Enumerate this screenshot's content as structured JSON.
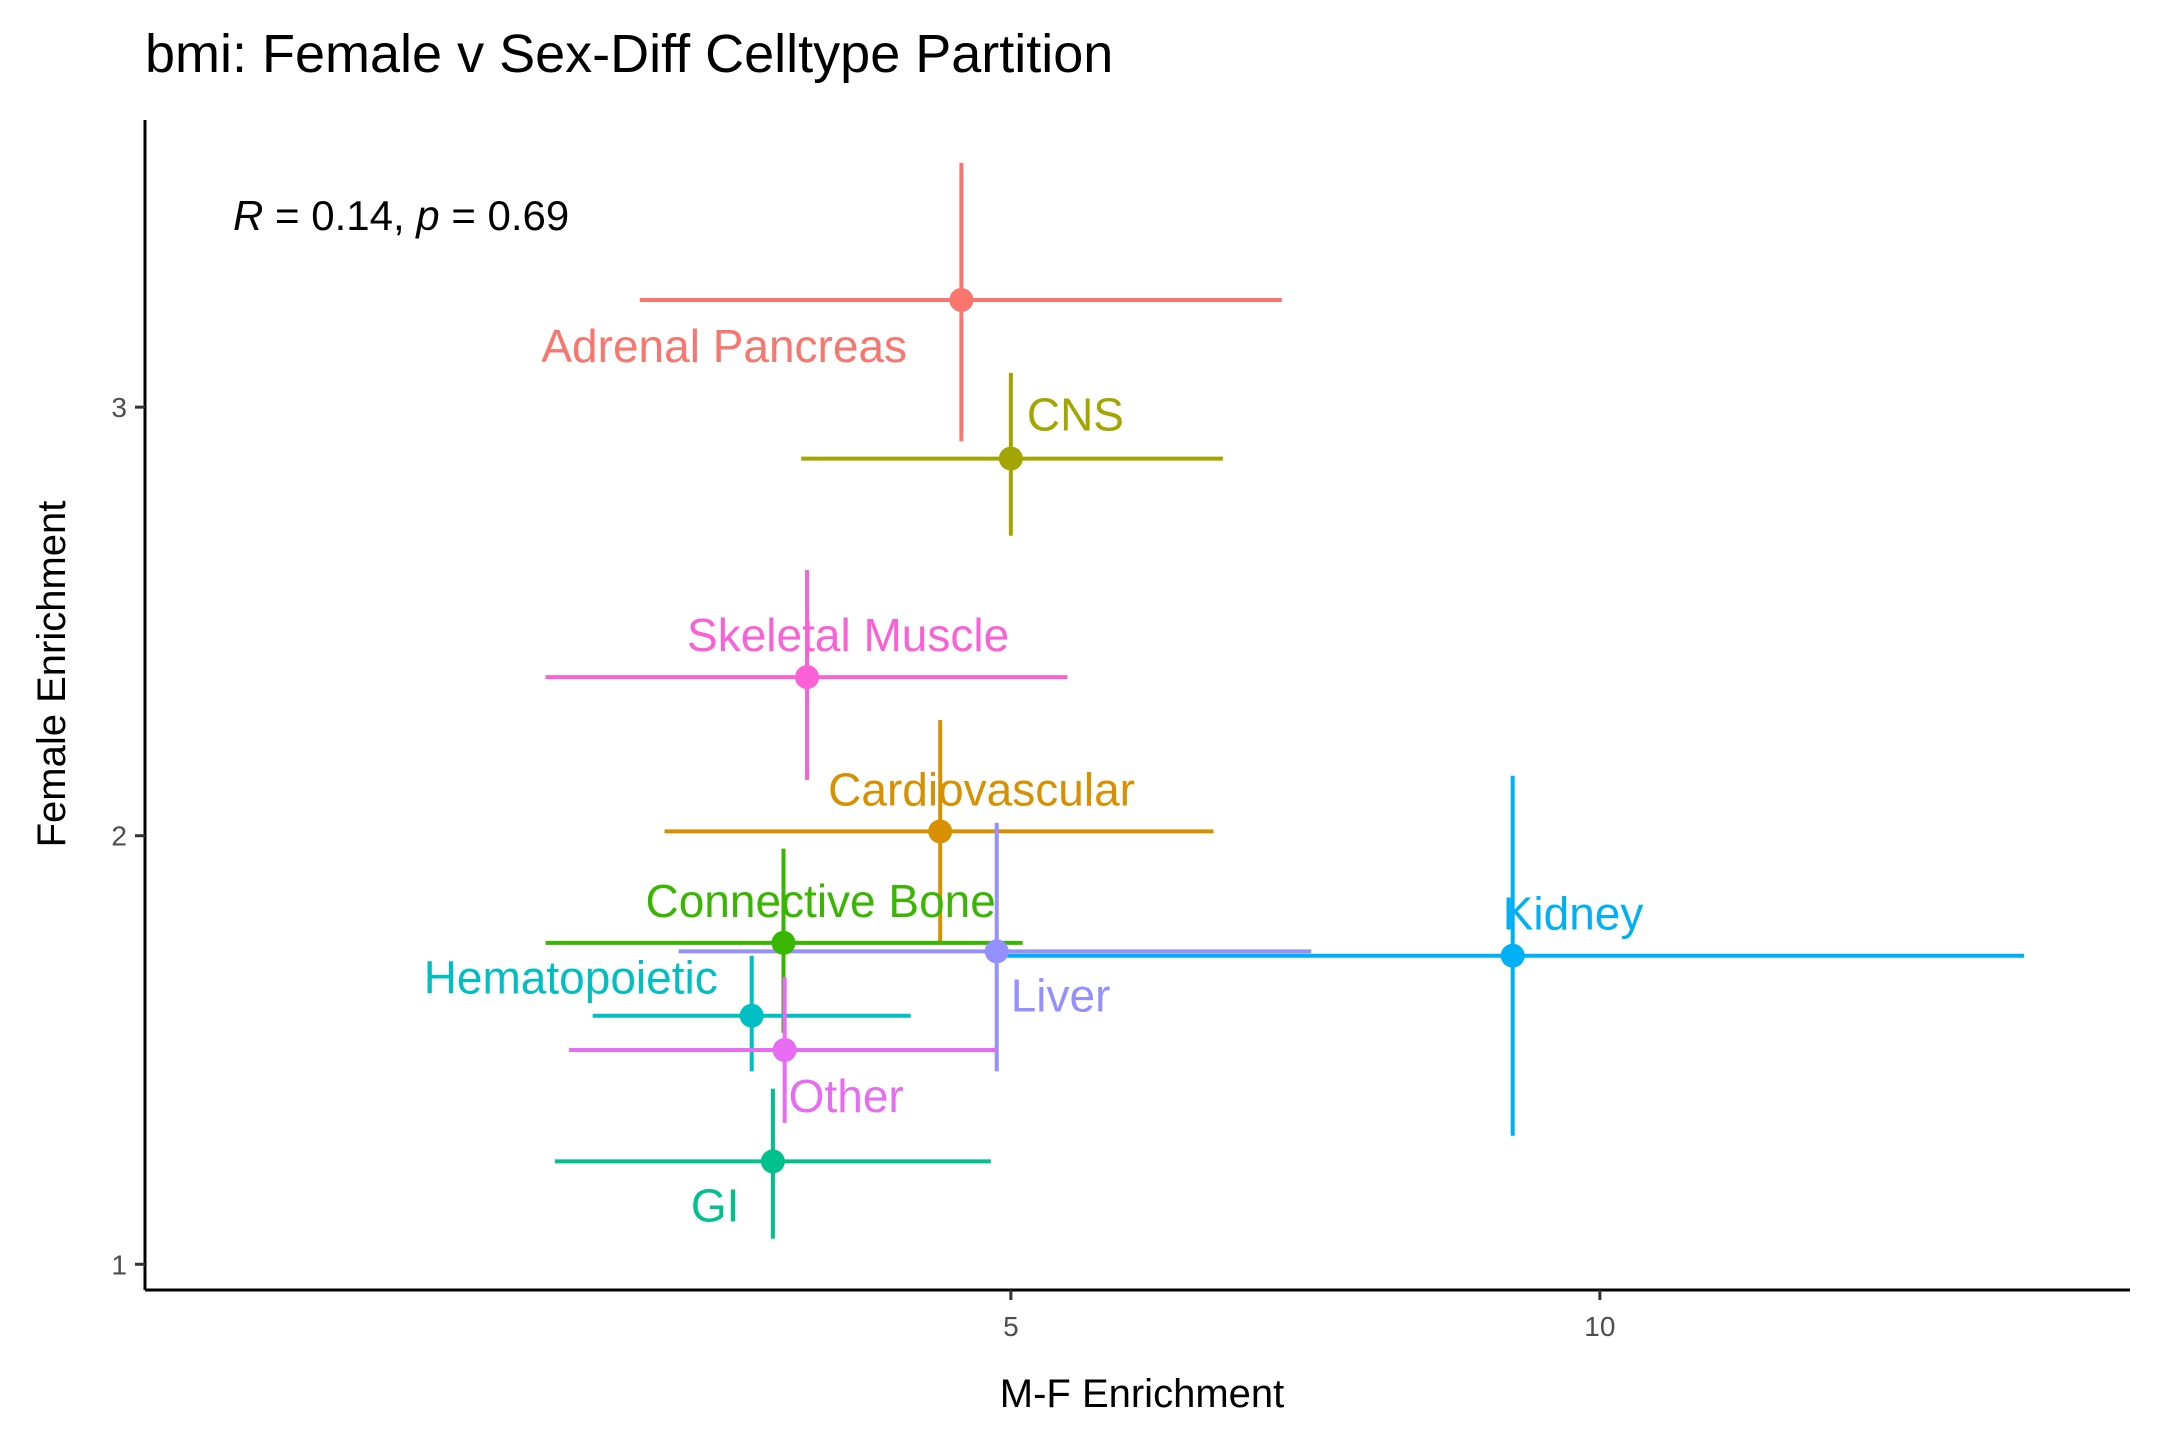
{
  "chart_data": {
    "type": "scatter",
    "title": "bmi: Female v Sex-Diff Celltype Partition",
    "xlabel": "M-F Enrichment",
    "ylabel": "Female Enrichment",
    "xlim": [
      -2.35,
      14.5
    ],
    "ylim": [
      0.94,
      3.67
    ],
    "x_ticks": [
      5,
      10
    ],
    "y_ticks": [
      1,
      2,
      3
    ],
    "grid": false,
    "legend": "none",
    "annotation": {
      "r_symbol": "R",
      "r_text": " = 0.14, ",
      "p_symbol": "p",
      "p_text": " = 0.69"
    },
    "series": [
      {
        "label": "Adrenal Pancreas",
        "color": "#F8766D",
        "x": 4.58,
        "y": 3.25,
        "x_low": 1.85,
        "x_high": 7.3,
        "y_low": 2.92,
        "y_high": 3.57
      },
      {
        "label": "CNS",
        "color": "#A3A500",
        "x": 5.0,
        "y": 2.88,
        "x_low": 3.22,
        "x_high": 6.8,
        "y_low": 2.7,
        "y_high": 3.08
      },
      {
        "label": "Skeletal Muscle",
        "color": "#FB61D7",
        "x": 3.27,
        "y": 2.37,
        "x_low": 1.05,
        "x_high": 5.48,
        "y_low": 2.13,
        "y_high": 2.62
      },
      {
        "label": "Cardiovascular",
        "color": "#D89000",
        "x": 4.4,
        "y": 2.01,
        "x_low": 2.06,
        "x_high": 6.72,
        "y_low": 1.75,
        "y_high": 2.27
      },
      {
        "label": "Connective Bone",
        "color": "#39B600",
        "x": 3.07,
        "y": 1.75,
        "x_low": 1.05,
        "x_high": 5.1,
        "y_low": 1.54,
        "y_high": 1.97
      },
      {
        "label": "Liver",
        "color": "#9590FF",
        "x": 4.88,
        "y": 1.73,
        "x_low": 2.18,
        "x_high": 7.55,
        "y_low": 1.45,
        "y_high": 2.03
      },
      {
        "label": "Kidney",
        "color": "#00B0F6",
        "x": 9.26,
        "y": 1.72,
        "x_low": 4.92,
        "x_high": 13.6,
        "y_low": 1.3,
        "y_high": 2.14
      },
      {
        "label": "Hematopoietic",
        "color": "#00BFC4",
        "x": 2.8,
        "y": 1.58,
        "x_low": 1.45,
        "x_high": 4.15,
        "y_low": 1.45,
        "y_high": 1.72
      },
      {
        "label": "Other",
        "color": "#E76BF3",
        "x": 3.08,
        "y": 1.5,
        "x_low": 1.25,
        "x_high": 4.88,
        "y_low": 1.33,
        "y_high": 1.67
      },
      {
        "label": "GI",
        "color": "#00C08B",
        "x": 2.98,
        "y": 1.24,
        "x_low": 1.13,
        "x_high": 4.83,
        "y_low": 1.06,
        "y_high": 1.41
      }
    ]
  }
}
